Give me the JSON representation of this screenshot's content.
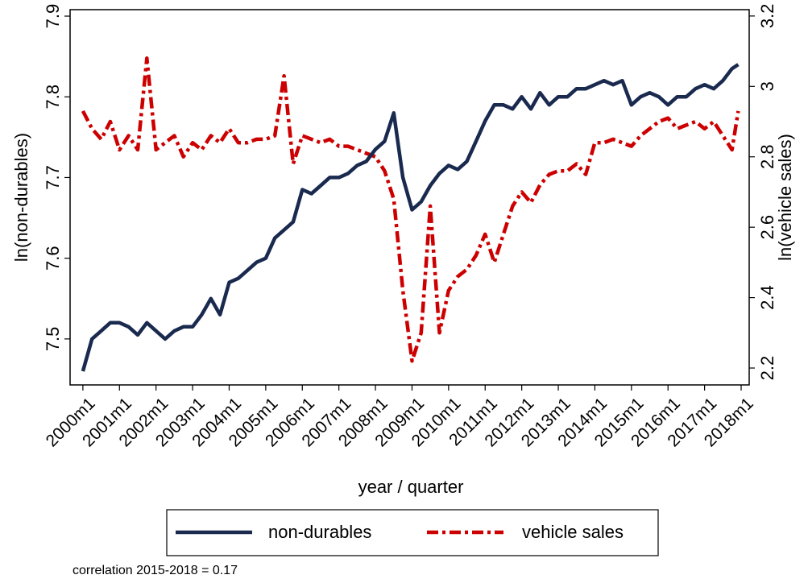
{
  "chart_data": {
    "type": "line",
    "x": [
      2000,
      2000.25,
      2000.5,
      2000.75,
      2001,
      2001.25,
      2001.5,
      2001.75,
      2002,
      2002.25,
      2002.5,
      2002.75,
      2003,
      2003.25,
      2003.5,
      2003.75,
      2004,
      2004.25,
      2004.5,
      2004.75,
      2005,
      2005.25,
      2005.5,
      2005.75,
      2006,
      2006.25,
      2006.5,
      2006.75,
      2007,
      2007.25,
      2007.5,
      2007.75,
      2008,
      2008.25,
      2008.5,
      2008.75,
      2009,
      2009.25,
      2009.5,
      2009.75,
      2010,
      2010.25,
      2010.5,
      2010.75,
      2011,
      2011.25,
      2011.5,
      2011.75,
      2012,
      2012.25,
      2012.5,
      2012.75,
      2013,
      2013.25,
      2013.5,
      2013.75,
      2014,
      2014.25,
      2014.5,
      2014.75,
      2015,
      2015.25,
      2015.5,
      2015.75,
      2016,
      2016.25,
      2016.5,
      2016.75,
      2017,
      2017.25,
      2017.5,
      2017.75,
      2017.92
    ],
    "series": [
      {
        "name": "non-durables",
        "color": "#1a2a4f",
        "dash": "solid",
        "values": [
          7.46,
          7.5,
          7.51,
          7.52,
          7.52,
          7.515,
          7.505,
          7.52,
          7.51,
          7.5,
          7.51,
          7.515,
          7.515,
          7.53,
          7.55,
          7.53,
          7.57,
          7.575,
          7.585,
          7.595,
          7.6,
          7.625,
          7.635,
          7.645,
          7.685,
          7.68,
          7.69,
          7.7,
          7.7,
          7.705,
          7.715,
          7.72,
          7.735,
          7.745,
          7.78,
          7.7,
          7.66,
          7.67,
          7.69,
          7.705,
          7.715,
          7.71,
          7.72,
          7.745,
          7.77,
          7.79,
          7.79,
          7.785,
          7.8,
          7.785,
          7.805,
          7.79,
          7.8,
          7.8,
          7.81,
          7.81,
          7.815,
          7.82,
          7.815,
          7.82,
          7.79,
          7.8,
          7.805,
          7.8,
          7.79,
          7.8,
          7.8,
          7.81,
          7.815,
          7.81,
          7.82,
          7.835,
          7.84
        ]
      },
      {
        "name": "vehicle sales",
        "color": "#cc0000",
        "dash": "dash-dot",
        "axis": "y2",
        "values": [
          2.93,
          2.88,
          2.85,
          2.9,
          2.82,
          2.86,
          2.82,
          3.08,
          2.82,
          2.84,
          2.86,
          2.8,
          2.84,
          2.82,
          2.86,
          2.84,
          2.88,
          2.84,
          2.84,
          2.85,
          2.85,
          2.86,
          3.03,
          2.78,
          2.86,
          2.85,
          2.84,
          2.85,
          2.83,
          2.83,
          2.82,
          2.81,
          2.8,
          2.76,
          2.68,
          2.42,
          2.22,
          2.3,
          2.66,
          2.3,
          2.42,
          2.46,
          2.48,
          2.52,
          2.58,
          2.5,
          2.58,
          2.66,
          2.7,
          2.67,
          2.72,
          2.75,
          2.76,
          2.76,
          2.78,
          2.75,
          2.84,
          2.84,
          2.85,
          2.84,
          2.83,
          2.86,
          2.88,
          2.9,
          2.91,
          2.88,
          2.89,
          2.9,
          2.88,
          2.9,
          2.86,
          2.82,
          2.93
        ]
      }
    ],
    "xlabel": "year / quarter",
    "ylabel": "ln(non-durables)",
    "y2label": "ln(vehicle sales)",
    "xlim": [
      1999.65,
      2018.22
    ],
    "xticks": [
      {
        "value": 2000,
        "label": "2000m1"
      },
      {
        "value": 2001,
        "label": "2001m1"
      },
      {
        "value": 2002,
        "label": "2002m1"
      },
      {
        "value": 2003,
        "label": "2003m1"
      },
      {
        "value": 2004,
        "label": "2004m1"
      },
      {
        "value": 2005,
        "label": "2005m1"
      },
      {
        "value": 2006,
        "label": "2006m1"
      },
      {
        "value": 2007,
        "label": "2007m1"
      },
      {
        "value": 2008,
        "label": "2008m1"
      },
      {
        "value": 2009,
        "label": "2009m1"
      },
      {
        "value": 2010,
        "label": "2010m1"
      },
      {
        "value": 2011,
        "label": "2011m1"
      },
      {
        "value": 2012,
        "label": "2012m1"
      },
      {
        "value": 2013,
        "label": "2013m1"
      },
      {
        "value": 2014,
        "label": "2014m1"
      },
      {
        "value": 2015,
        "label": "2015m1"
      },
      {
        "value": 2016,
        "label": "2016m1"
      },
      {
        "value": 2017,
        "label": "2017m1"
      },
      {
        "value": 2018,
        "label": "2018m1"
      }
    ],
    "ylim": [
      7.443,
      7.908
    ],
    "yticks": [
      7.5,
      7.6,
      7.7,
      7.8,
      7.9
    ],
    "y2lim": [
      2.152,
      3.218
    ],
    "y2ticks": [
      2.2,
      2.4,
      2.6,
      2.8,
      3,
      3.2
    ],
    "legend": "bottom",
    "annotation": "correlation 2015-2018 = 0.17"
  }
}
